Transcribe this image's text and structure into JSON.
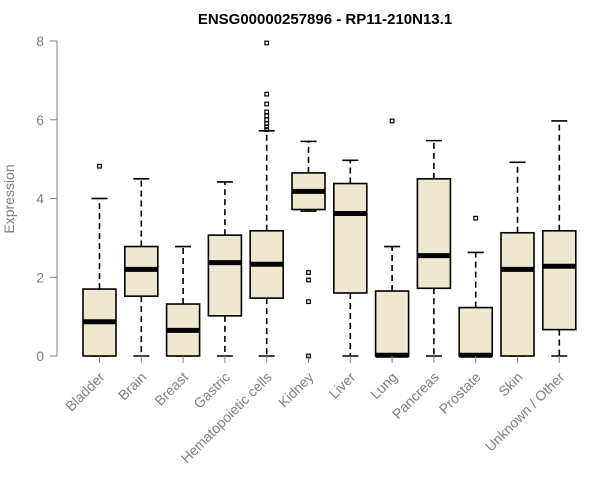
{
  "chart_data": {
    "type": "boxplot",
    "title": "ENSG00000257896 - RP11-210N13.1",
    "xlabel": "",
    "ylabel": "Expression",
    "ylim": [
      0,
      8
    ],
    "yticks": [
      0,
      2,
      4,
      6,
      8
    ],
    "categories": [
      "Bladder",
      "Brain",
      "Breast",
      "Gastric",
      "Hematopoietic cells",
      "Kidney",
      "Liver",
      "Lung",
      "Pancreas",
      "Prostate",
      "Skin",
      "Unknown / Other"
    ],
    "boxes": [
      {
        "min": 0.0,
        "q1": 0.0,
        "median": 0.87,
        "q3": 1.7,
        "max": 4.0,
        "outliers": [
          4.82
        ]
      },
      {
        "min": 0.0,
        "q1": 1.52,
        "median": 2.2,
        "q3": 2.78,
        "max": 4.5,
        "outliers": []
      },
      {
        "min": 0.0,
        "q1": 0.0,
        "median": 0.65,
        "q3": 1.32,
        "max": 2.78,
        "outliers": []
      },
      {
        "min": 0.0,
        "q1": 1.02,
        "median": 2.37,
        "q3": 3.07,
        "max": 4.42,
        "outliers": []
      },
      {
        "min": 0.0,
        "q1": 1.47,
        "median": 2.33,
        "q3": 3.18,
        "max": 5.72,
        "outliers": [
          5.75,
          5.82,
          5.9,
          6.0,
          6.1,
          6.2,
          6.4,
          6.65,
          7.95
        ]
      },
      {
        "min": 3.68,
        "q1": 3.72,
        "median": 4.18,
        "q3": 4.65,
        "max": 5.45,
        "outliers": [
          0.0,
          1.38,
          1.93,
          2.12
        ]
      },
      {
        "min": 0.0,
        "q1": 1.6,
        "median": 3.62,
        "q3": 4.38,
        "max": 4.97,
        "outliers": []
      },
      {
        "min": 0.0,
        "q1": 0.0,
        "median": 0.02,
        "q3": 1.65,
        "max": 2.78,
        "outliers": [
          5.97
        ]
      },
      {
        "min": 0.0,
        "q1": 1.72,
        "median": 2.55,
        "q3": 4.5,
        "max": 5.47,
        "outliers": []
      },
      {
        "min": 0.0,
        "q1": 0.0,
        "median": 0.02,
        "q3": 1.23,
        "max": 2.63,
        "outliers": [
          3.5
        ]
      },
      {
        "min": 0.0,
        "q1": 0.0,
        "median": 2.2,
        "q3": 3.13,
        "max": 4.92,
        "outliers": []
      },
      {
        "min": 0.0,
        "q1": 0.67,
        "median": 2.28,
        "q3": 3.18,
        "max": 5.97,
        "outliers": []
      }
    ]
  }
}
